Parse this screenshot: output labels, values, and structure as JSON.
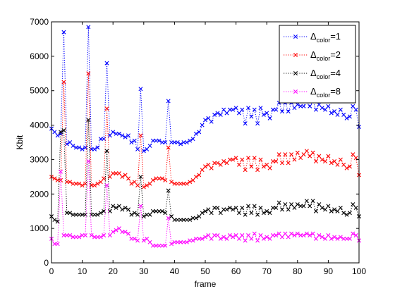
{
  "chart_data": {
    "type": "line",
    "xlabel": "frame",
    "ylabel": "Kbit",
    "xlim": [
      0,
      100
    ],
    "ylim": [
      0,
      7000
    ],
    "xticks": [
      "0",
      "10",
      "20",
      "30",
      "40",
      "50",
      "60",
      "70",
      "80",
      "90",
      "100"
    ],
    "yticks": [
      "0",
      "1000",
      "2000",
      "3000",
      "4000",
      "5000",
      "6000",
      "7000"
    ],
    "grid": false,
    "legend_position": "top-right",
    "line_style": "dotted",
    "marker": "x",
    "series": [
      {
        "name": "Δcolor=1",
        "name_main": "Δ",
        "name_sub": "color",
        "name_tail": "=1",
        "color": "#0000ff",
        "values": [
          3900,
          3800,
          3700,
          3750,
          6700,
          3450,
          3500,
          3400,
          3350,
          3350,
          3300,
          3350,
          6850,
          3300,
          3300,
          3350,
          3600,
          3600,
          5800,
          3700,
          3800,
          3750,
          3750,
          3700,
          3650,
          3700,
          3500,
          3550,
          3300,
          5050,
          3250,
          3300,
          3400,
          3550,
          3550,
          3550,
          3500,
          3500,
          4700,
          3500,
          3500,
          3500,
          3450,
          3500,
          3500,
          3550,
          3600,
          3750,
          3800,
          4000,
          4150,
          4200,
          4100,
          4300,
          4350,
          4300,
          4450,
          4350,
          4450,
          4450,
          4500,
          4350,
          4450,
          4050,
          4500,
          4250,
          4450,
          4050,
          4500,
          4300,
          4350,
          4200,
          4450,
          4450,
          4650,
          4400,
          4650,
          4400,
          4650,
          4500,
          4600,
          4550,
          4550,
          4700,
          4550,
          4700,
          4450,
          4600,
          4500,
          4450,
          4550,
          4350,
          4400,
          4300,
          4450,
          4300,
          4200,
          4250,
          4550,
          4450,
          3950
        ]
      },
      {
        "name": "Δcolor=2",
        "name_main": "Δ",
        "name_sub": "color",
        "name_tail": "=2",
        "color": "#ff0000",
        "values": [
          2500,
          2450,
          2400,
          2400,
          5250,
          2350,
          2350,
          2300,
          2300,
          2300,
          2250,
          2300,
          5500,
          2250,
          2250,
          2300,
          2350,
          2450,
          4480,
          2500,
          2600,
          2600,
          2600,
          2500,
          2550,
          2450,
          2300,
          2350,
          2250,
          3700,
          2200,
          2250,
          2300,
          2400,
          2450,
          2450,
          2450,
          2400,
          3350,
          2350,
          2300,
          2300,
          2300,
          2300,
          2300,
          2350,
          2400,
          2500,
          2550,
          2700,
          2800,
          2850,
          2750,
          2900,
          2900,
          2850,
          2950,
          2900,
          3000,
          3000,
          3050,
          2850,
          3000,
          2700,
          3050,
          2800,
          3050,
          2700,
          3000,
          2800,
          2850,
          2750,
          2950,
          2950,
          3150,
          2900,
          3150,
          2900,
          3150,
          3000,
          3200,
          3050,
          3150,
          3250,
          3100,
          3200,
          2950,
          3100,
          3000,
          2950,
          3100,
          2900,
          2950,
          2850,
          3000,
          2850,
          2750,
          2800,
          3150,
          3050,
          2550
        ]
      },
      {
        "name": "Δcolor=4",
        "name_main": "Δ",
        "name_sub": "color",
        "name_tail": "=4",
        "color": "#000000",
        "values": [
          1350,
          1250,
          1200,
          3800,
          3850,
          1450,
          1450,
          1400,
          1400,
          1400,
          1400,
          1400,
          4150,
          1400,
          1400,
          1400,
          1450,
          1500,
          3250,
          1500,
          1650,
          1600,
          1650,
          1550,
          1600,
          1550,
          1400,
          1450,
          1400,
          2500,
          1350,
          1400,
          1400,
          1500,
          1500,
          1500,
          1500,
          1450,
          2100,
          1350,
          1250,
          1250,
          1250,
          1250,
          1250,
          1250,
          1300,
          1300,
          1350,
          1450,
          1500,
          1550,
          1450,
          1600,
          1600,
          1450,
          1550,
          1550,
          1600,
          1550,
          1600,
          1450,
          1600,
          1400,
          1650,
          1450,
          1650,
          1400,
          1600,
          1450,
          1500,
          1450,
          1600,
          1600,
          1750,
          1550,
          1700,
          1550,
          1700,
          1600,
          1700,
          1650,
          1650,
          1800,
          1650,
          1800,
          1500,
          1700,
          1600,
          1550,
          1650,
          1500,
          1550,
          1500,
          1600,
          1450,
          1400,
          1450,
          1700,
          1600,
          1350
        ]
      },
      {
        "name": "Δcolor=8",
        "name_main": "Δ",
        "name_sub": "color",
        "name_tail": "=8",
        "color": "#ff00ff",
        "values": [
          700,
          550,
          550,
          2650,
          800,
          800,
          800,
          750,
          750,
          750,
          800,
          800,
          2950,
          800,
          750,
          750,
          750,
          800,
          2250,
          800,
          900,
          950,
          1000,
          900,
          900,
          850,
          700,
          700,
          650,
          1650,
          650,
          700,
          600,
          500,
          500,
          500,
          500,
          500,
          1300,
          550,
          600,
          600,
          600,
          600,
          600,
          650,
          650,
          700,
          700,
          700,
          750,
          800,
          700,
          800,
          800,
          700,
          750,
          700,
          800,
          750,
          800,
          700,
          800,
          650,
          800,
          700,
          850,
          650,
          800,
          700,
          750,
          700,
          800,
          800,
          850,
          750,
          850,
          750,
          850,
          800,
          850,
          800,
          800,
          850,
          800,
          850,
          700,
          800,
          750,
          700,
          800,
          700,
          750,
          700,
          750,
          700,
          700,
          700,
          850,
          800,
          650
        ]
      }
    ]
  }
}
